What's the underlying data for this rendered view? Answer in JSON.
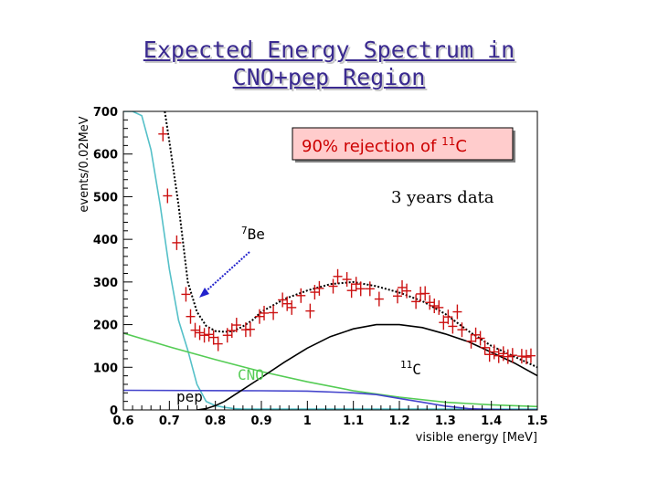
{
  "slide": {
    "title_line1": "Expected Energy Spectrum in",
    "title_line2": "CNO+pep Region"
  },
  "colors": {
    "title": "#3a2a90",
    "data_points": "#cc1111",
    "total_fit": "#000000",
    "be7": "#55c0c8",
    "cno": "#55cc55",
    "pep": "#4444cc",
    "c11": "#000000",
    "arrow": "#2222cc",
    "box_fill": "#ffcccc",
    "box_text": "#cc0000"
  },
  "chart_data": {
    "type": "line",
    "xlabel": "visible energy [MeV]",
    "ylabel": "events/0.02MeV",
    "xlim": [
      0.6,
      1.5
    ],
    "ylim": [
      0,
      700
    ],
    "x_ticks": [
      0.6,
      0.7,
      0.8,
      0.9,
      1.0,
      1.1,
      1.2,
      1.3,
      1.4,
      1.5
    ],
    "x_tick_labels": [
      "0.6",
      "0.7",
      "0.8",
      "0.9",
      "1",
      "1.1",
      "1.2",
      "1.3",
      "1.4",
      "1.5"
    ],
    "y_ticks": [
      0,
      100,
      200,
      300,
      400,
      500,
      600,
      700
    ],
    "y_tick_labels": [
      "0",
      "100",
      "200",
      "300",
      "400",
      "500",
      "600",
      "700"
    ],
    "box_label": "90% rejection of",
    "box_label_sup": "11",
    "box_label_end": "C",
    "exposure_label": "3 years data",
    "series": [
      {
        "name": "data",
        "style": "points",
        "color": "#cc1111",
        "x": [
          0.686,
          0.696,
          0.716,
          0.736,
          0.746,
          0.756,
          0.766,
          0.776,
          0.786,
          0.796,
          0.806,
          0.826,
          0.836,
          0.846,
          0.866,
          0.876,
          0.896,
          0.906,
          0.926,
          0.946,
          0.956,
          0.966,
          0.986,
          1.006,
          1.016,
          1.026,
          1.056,
          1.066,
          1.086,
          1.096,
          1.106,
          1.116,
          1.136,
          1.156,
          1.196,
          1.206,
          1.216,
          1.236,
          1.246,
          1.256,
          1.266,
          1.276,
          1.286,
          1.296,
          1.306,
          1.316,
          1.326,
          1.336,
          1.356,
          1.366,
          1.376,
          1.386,
          1.396,
          1.406,
          1.416,
          1.426,
          1.436,
          1.446,
          1.466,
          1.476,
          1.486
        ],
        "y": [
          647,
          502,
          392,
          271,
          219,
          187,
          181,
          175,
          177,
          170,
          155,
          175,
          186,
          199,
          188,
          189,
          219,
          227,
          228,
          258,
          249,
          240,
          268,
          232,
          276,
          285,
          290,
          313,
          306,
          280,
          295,
          284,
          284,
          260,
          267,
          287,
          279,
          254,
          272,
          273,
          252,
          244,
          240,
          205,
          218,
          196,
          230,
          188,
          161,
          176,
          168,
          146,
          130,
          136,
          127,
          132,
          125,
          128,
          126,
          124,
          127
        ]
      },
      {
        "name": "total fit",
        "style": "dotted",
        "color": "#000000",
        "x": [
          0.69,
          0.7,
          0.72,
          0.74,
          0.76,
          0.78,
          0.8,
          0.82,
          0.84,
          0.86,
          0.88,
          0.9,
          0.95,
          1.0,
          1.05,
          1.1,
          1.15,
          1.2,
          1.25,
          1.3,
          1.35,
          1.4,
          1.45,
          1.5
        ],
        "y": [
          700,
          630,
          480,
          300,
          230,
          197,
          185,
          183,
          185,
          196,
          210,
          230,
          260,
          280,
          295,
          300,
          290,
          275,
          255,
          225,
          185,
          150,
          125,
          100
        ]
      },
      {
        "name": "7Be",
        "label": "Be",
        "label_sup": "7",
        "style": "line",
        "color": "#55c0c8",
        "x": [
          0.6,
          0.62,
          0.64,
          0.66,
          0.68,
          0.7,
          0.72,
          0.74,
          0.75,
          0.76,
          0.78,
          0.8,
          0.82,
          0.84,
          0.86,
          1.5
        ],
        "y": [
          700,
          700,
          690,
          610,
          480,
          330,
          210,
          140,
          100,
          60,
          20,
          10,
          6,
          3,
          2,
          2
        ]
      },
      {
        "name": "CNO",
        "label": "CNO",
        "style": "line",
        "color": "#55cc55",
        "x": [
          0.6,
          0.7,
          0.8,
          0.9,
          1.0,
          1.1,
          1.2,
          1.3,
          1.4,
          1.5
        ],
        "y": [
          180,
          148,
          118,
          90,
          66,
          45,
          30,
          18,
          12,
          8
        ]
      },
      {
        "name": "pep",
        "label": "pep",
        "style": "line",
        "color": "#4444cc",
        "x": [
          0.6,
          0.9,
          1.0,
          1.1,
          1.15,
          1.2,
          1.25,
          1.3,
          1.35,
          1.4,
          1.45,
          1.5
        ],
        "y": [
          46,
          45,
          44,
          40,
          36,
          27,
          18,
          9,
          3,
          1,
          0,
          0
        ]
      },
      {
        "name": "11C",
        "label": "C",
        "label_sup": "11",
        "style": "line",
        "color": "#000000",
        "x": [
          0.76,
          0.78,
          0.8,
          0.82,
          0.84,
          0.86,
          0.88,
          0.9,
          0.95,
          1.0,
          1.05,
          1.1,
          1.15,
          1.2,
          1.25,
          1.3,
          1.35,
          1.4,
          1.45,
          1.5
        ],
        "y": [
          0,
          3,
          10,
          20,
          34,
          48,
          62,
          76,
          112,
          145,
          172,
          190,
          200,
          200,
          193,
          178,
          160,
          135,
          110,
          80
        ]
      }
    ]
  }
}
